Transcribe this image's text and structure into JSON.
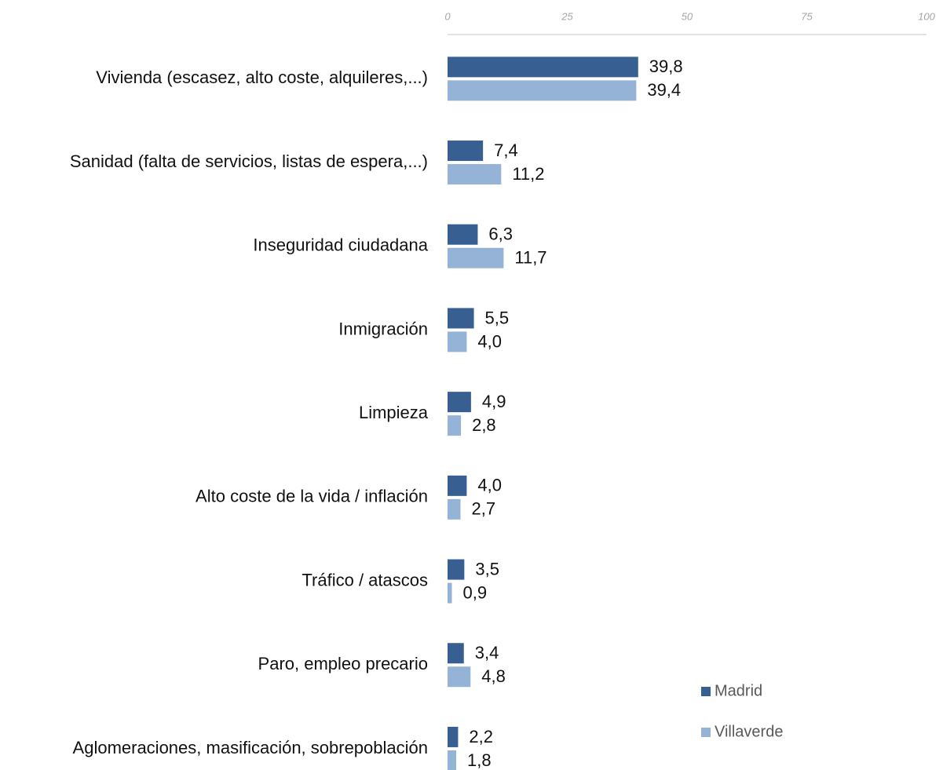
{
  "chart_data": {
    "type": "bar",
    "orientation": "horizontal",
    "categories": [
      "Vivienda (escasez, alto coste, alquileres,...)",
      "Sanidad (falta de servicios, listas de espera,...)",
      "Inseguridad ciudadana",
      "Inmigración",
      "Limpieza",
      "Alto coste de la vida / inflación",
      "Tráfico / atascos",
      "Paro, empleo precario",
      "Aglomeraciones, masificación, sobrepoblación"
    ],
    "series": [
      {
        "name": "Madrid",
        "color": "#375f92",
        "values": [
          39.8,
          7.4,
          6.3,
          5.5,
          4.9,
          4.0,
          3.5,
          3.4,
          2.2
        ],
        "value_labels": [
          "39,8",
          "7,4",
          "6,3",
          "5,5",
          "4,9",
          "4,0",
          "3,5",
          "3,4",
          "2,2"
        ]
      },
      {
        "name": "Villaverde",
        "color": "#95b3d7",
        "values": [
          39.4,
          11.2,
          11.7,
          4.0,
          2.8,
          2.7,
          0.9,
          4.8,
          1.8
        ],
        "value_labels": [
          "39,4",
          "11,2",
          "11,7",
          "4,0",
          "2,8",
          "2,7",
          "0,9",
          "4,8",
          "1,8"
        ]
      }
    ],
    "xlim": [
      0,
      100
    ],
    "xticks": [
      0,
      25,
      50,
      75,
      100
    ],
    "grid": false
  }
}
